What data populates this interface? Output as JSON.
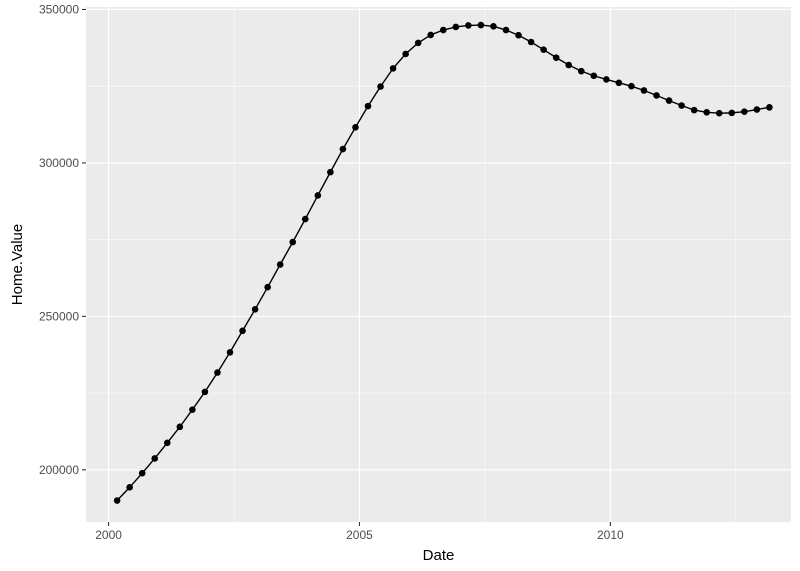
{
  "chart_data": {
    "type": "line",
    "title": "",
    "xlabel": "Date",
    "ylabel": "Home.Value",
    "x_ticks": [
      "2000",
      "2005",
      "2010"
    ],
    "y_ticks": [
      "200000",
      "250000",
      "300000",
      "350000"
    ],
    "xlim": [
      1999.55,
      2013.6
    ],
    "ylim": [
      183000,
      350800
    ],
    "grid": true,
    "legend": "none",
    "colors": {
      "panel": "#ebebeb",
      "grid": "#ffffff",
      "line": "#000000",
      "point": "#000000"
    },
    "series": [
      {
        "x": [
          2000.17,
          2000.42,
          2000.67,
          2000.92,
          2001.17,
          2001.42,
          2001.67,
          2001.92,
          2002.17,
          2002.42,
          2002.67,
          2002.92,
          2003.17,
          2003.42,
          2003.67,
          2003.92,
          2004.17,
          2004.42,
          2004.67,
          2004.92,
          2005.17,
          2005.42,
          2005.67,
          2005.92,
          2006.17,
          2006.42,
          2006.67,
          2006.92,
          2007.17,
          2007.42,
          2007.67,
          2007.92,
          2008.17,
          2008.42,
          2008.67,
          2008.92,
          2009.17,
          2009.42,
          2009.67,
          2009.92,
          2010.17,
          2010.42,
          2010.67,
          2010.92,
          2011.17,
          2011.42,
          2011.67,
          2011.92,
          2012.17,
          2012.42,
          2012.67,
          2012.92,
          2013.17
        ],
        "values": [
          190000,
          194300,
          198900,
          203700,
          208800,
          214000,
          219600,
          225400,
          231700,
          238300,
          245300,
          252300,
          259500,
          266900,
          274200,
          281700,
          289400,
          297000,
          304500,
          311600,
          318500,
          324900,
          330800,
          335500,
          339100,
          341700,
          343300,
          344300,
          344800,
          344900,
          344500,
          343300,
          341600,
          339400,
          336900,
          334300,
          331900,
          329900,
          328400,
          327200,
          326100,
          325000,
          323600,
          322000,
          320300,
          318700,
          317200,
          316500,
          316200,
          316300,
          316700,
          317400,
          318100
        ]
      }
    ]
  }
}
